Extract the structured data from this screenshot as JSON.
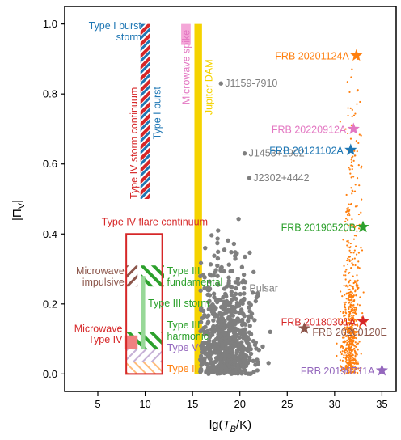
{
  "chart_data": {
    "type": "scatter",
    "xlabel_prefix": "lg(",
    "xlabel_var": "T",
    "xlabel_sub": "B",
    "xlabel_suffix": "/K)",
    "ylabel": "|Π",
    "ylabel_sub": "V",
    "ylabel_suffix": "|",
    "xlim": [
      1.5,
      36.5
    ],
    "ylim": [
      -0.05,
      1.05
    ],
    "xticks": [
      5,
      10,
      15,
      20,
      25,
      30,
      35
    ],
    "yticks": [
      0.0,
      0.2,
      0.4,
      0.6,
      0.8,
      1.0
    ],
    "ytick_labels": [
      "0.0",
      "0.2",
      "0.4",
      "0.6",
      "0.8",
      "1.0"
    ],
    "grid": false,
    "colors": {
      "type1": "#1f77b4",
      "type4": "#d62728",
      "type3": "#2ca02c",
      "type2": "#ff7f0e",
      "type5": "#9467bd",
      "microwave": "#8c564b",
      "microwave_iv": "#f08080",
      "jupiter": "#f5d300",
      "spike": "#e377c2",
      "pulsar": "#7f7f7f",
      "frb_cloud": "#ff7f0e"
    },
    "regions": [
      {
        "label": "Type I burst storm",
        "kind": "hatch",
        "x": [
          9.8,
          10.5
        ],
        "y": [
          0.5,
          1.0
        ],
        "colors": [
          "#1f77b4",
          "#ffffff"
        ]
      },
      {
        "label": "Type I burst",
        "kind": "hatch",
        "x": [
          9.8,
          10.5
        ],
        "y": [
          0.5,
          1.0
        ],
        "colors": [
          "#1f77b4",
          "#ffffff"
        ]
      },
      {
        "label": "Type IV storm continuum",
        "kind": "hatch",
        "x": [
          9.5,
          10.5
        ],
        "y": [
          0.5,
          1.0
        ],
        "colors": [
          "#d62728",
          "#ffffff"
        ]
      },
      {
        "label": "Microwave spike",
        "kind": "fill",
        "x": [
          13.8,
          14.8
        ],
        "y": [
          0.94,
          1.0
        ]
      },
      {
        "label": "Jupiter DAM",
        "kind": "fill",
        "x": [
          15.2,
          16.0
        ],
        "y": [
          0.0,
          1.0
        ]
      },
      {
        "label": "Type IV flare continuum",
        "kind": "box",
        "x": [
          8.0,
          11.8
        ],
        "y": [
          0.0,
          0.4
        ]
      },
      {
        "label": "Microwave impulsive",
        "kind": "hatch",
        "x": [
          8.0,
          9.2
        ],
        "y": [
          0.25,
          0.31
        ]
      },
      {
        "label": "Type III fundamental",
        "kind": "hatch",
        "x": [
          9.5,
          12.0
        ],
        "y": [
          0.25,
          0.31
        ]
      },
      {
        "label": "Type III storm",
        "kind": "fill",
        "x": [
          9.6,
          10.1
        ],
        "y": [
          0.05,
          0.28
        ]
      },
      {
        "label": "Type III harmonic",
        "kind": "hatch",
        "x": [
          8.0,
          11.8
        ],
        "y": [
          0.05,
          0.12
        ]
      },
      {
        "label": "Microwave Type IV",
        "kind": "fill",
        "x": [
          7.8,
          9.2
        ],
        "y": [
          0.06,
          0.11
        ]
      },
      {
        "label": "Type V",
        "kind": "hatch",
        "x": [
          8.0,
          11.8
        ],
        "y": [
          0.02,
          0.06
        ]
      },
      {
        "label": "Type II",
        "kind": "hatch",
        "x": [
          8.0,
          11.8
        ],
        "y": [
          0.0,
          0.03
        ]
      }
    ],
    "region_labels": {
      "type1_storm": "Type I burst\nstorm",
      "type1_burst": "Type I burst",
      "type4_storm": "Type IV storm continuum",
      "spike": "Microwave spike",
      "jupiter": "Jupiter DAM",
      "flare": "Type IV flare continuum",
      "mw_impulsive": "Microwave\nimpulsive",
      "t3_fund": "Type III\nfundamental",
      "t3_storm": "Type III storm",
      "t3_harm": "Type III\nharmonic",
      "mw_type4": "Microwave\nType IV",
      "type5": "Type V",
      "type2": "Type II",
      "pulsar": "Pulsar"
    },
    "named_pulsars": [
      {
        "name": "J1159-7910",
        "x": 18.0,
        "y": 0.83
      },
      {
        "name": "J1453+1902",
        "x": 20.5,
        "y": 0.63
      },
      {
        "name": "J2302+4442",
        "x": 21.0,
        "y": 0.56
      }
    ],
    "frbs": [
      {
        "name": "FRB 20201124A",
        "x": 32.3,
        "y": 0.91,
        "color": "#ff7f0e"
      },
      {
        "name": "FRB 20220912A",
        "x": 32.0,
        "y": 0.7,
        "color": "#e377c2"
      },
      {
        "name": "FRB 20121102A",
        "x": 31.7,
        "y": 0.64,
        "color": "#1f77b4"
      },
      {
        "name": "FRB 20190520B",
        "x": 33.0,
        "y": 0.42,
        "color": "#2ca02c"
      },
      {
        "name": "FRB 20180301A",
        "x": 33.0,
        "y": 0.15,
        "color": "#d62728"
      },
      {
        "name": "FRB 20200120E",
        "x": 26.8,
        "y": 0.13,
        "color": "#8c564b"
      },
      {
        "name": "FRB 20190711A",
        "x": 35.0,
        "y": 0.01,
        "color": "#9467bd"
      }
    ]
  }
}
